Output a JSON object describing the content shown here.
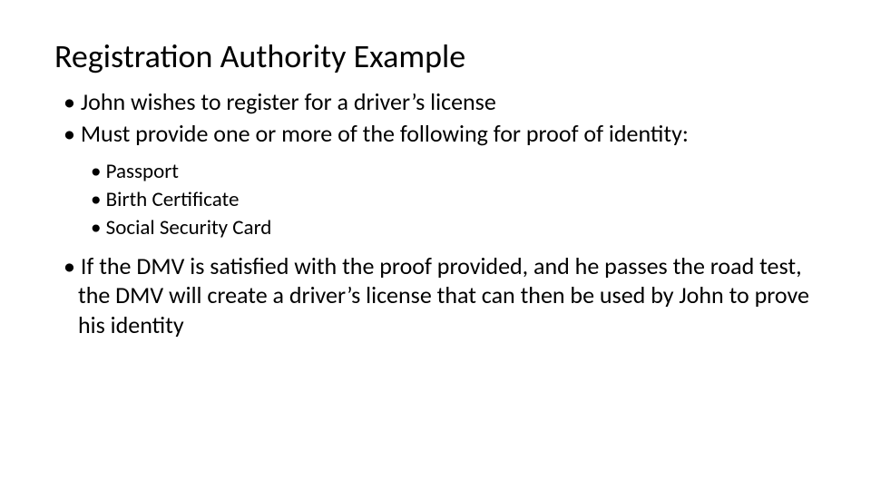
{
  "slide": {
    "title": "Registration Authority Example",
    "bullets": {
      "b1": "John wishes to register for a driver’s license",
      "b2": "Must provide one or more of the following for proof of identity:",
      "b3": "Passport",
      "b4": "Birth Certificate",
      "b5": "Social Security Card",
      "b6": "If the DMV is satisfied with the proof provided, and he passes the road test, the DMV will create a driver’s license that can then be used by John to prove his identity"
    }
  },
  "styling": {
    "background_color": "#ffffff",
    "text_color": "#000000",
    "title_fontsize": 36,
    "level1_fontsize": 26,
    "level2_fontsize": 23,
    "font_family": "Calibri"
  }
}
